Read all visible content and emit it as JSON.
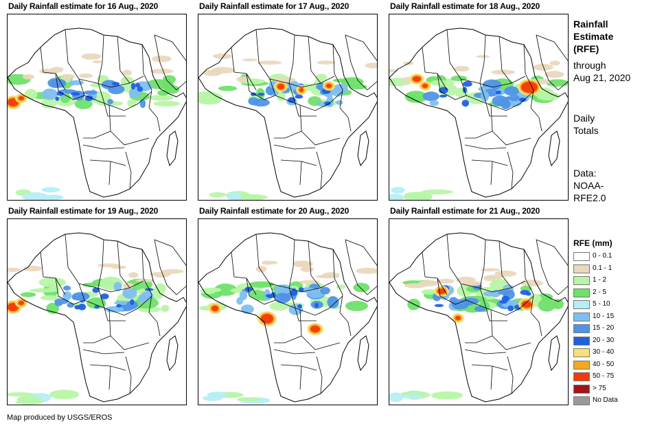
{
  "panels": [
    {
      "title": "Daily Rainfall estimate for 16 Aug., 2020",
      "rain_pattern": "sahel-band-west-heavy"
    },
    {
      "title": "Daily Rainfall estimate for 17 Aug., 2020",
      "rain_pattern": "sahel-band-central"
    },
    {
      "title": "Daily Rainfall estimate for 18 Aug., 2020",
      "rain_pattern": "sahel-band-ethiopia-heavy"
    },
    {
      "title": "Daily Rainfall estimate for 19 Aug., 2020",
      "rain_pattern": "sahel-band-west-heavy"
    },
    {
      "title": "Daily Rainfall estimate for 20 Aug., 2020",
      "rain_pattern": "central-heavy"
    },
    {
      "title": "Daily Rainfall estimate for 21 Aug., 2020",
      "rain_pattern": "sahel-band-east-heavy"
    }
  ],
  "side": {
    "title_line1": "Rainfall",
    "title_line2": "Estimate",
    "title_line3": "(RFE)",
    "through_line1": "through",
    "through_line2": "Aug 21, 2020",
    "daily_line1": "Daily",
    "daily_line2": "Totals",
    "data_line1": "Data:",
    "data_line2": "NOAA-",
    "data_line3": "RFE2.0"
  },
  "legend": {
    "title": "RFE (mm)",
    "items": [
      {
        "label": "0 - 0.1",
        "color": "#ffffff"
      },
      {
        "label": "0.1 - 1",
        "color": "#ead8bd"
      },
      {
        "label": "1 - 2",
        "color": "#b7f5a7"
      },
      {
        "label": "2 - 5",
        "color": "#6fe06a"
      },
      {
        "label": "5 - 10",
        "color": "#b5eef7"
      },
      {
        "label": "10 - 15",
        "color": "#7fbff0"
      },
      {
        "label": "15 - 20",
        "color": "#4f93e8"
      },
      {
        "label": "20 - 30",
        "color": "#2060e0"
      },
      {
        "label": "30 - 40",
        "color": "#f8e07a"
      },
      {
        "label": "40 - 50",
        "color": "#f5a623"
      },
      {
        "label": "50 - 75",
        "color": "#f23a0a"
      },
      {
        "label": "> 75",
        "color": "#a31515"
      },
      {
        "label": "No Data",
        "color": "#999999"
      }
    ]
  },
  "footer": "Map produced by USGS/EROS"
}
